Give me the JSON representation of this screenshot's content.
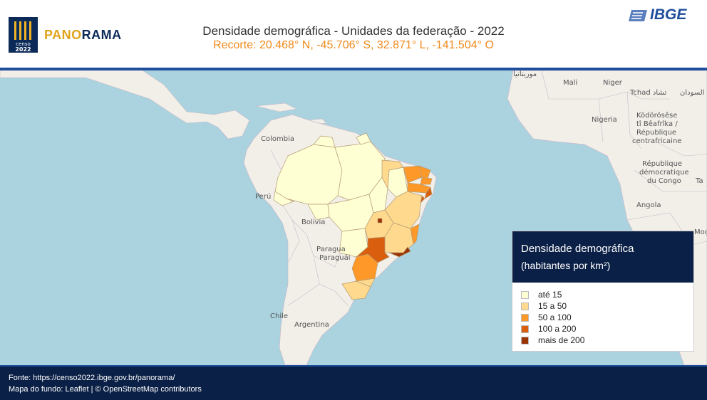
{
  "header": {
    "brand_censo_line1": "censo",
    "brand_censo_line2": "2022",
    "brand_panorama_a": "PANO",
    "brand_panorama_b": "RAMA",
    "title": "Densidade demográfica - Unidades da federação - 2022",
    "subtitle": "Recorte: 20.468° N, -45.706° S, 32.871° L, -141.504° O",
    "ibge_logo": "IBGE"
  },
  "map": {
    "labels": [
      {
        "text": "موريتانيا"
      },
      {
        "text": "Mali"
      },
      {
        "text": "Niger"
      },
      {
        "text": "Tchad تشاد"
      },
      {
        "text": "السودان"
      },
      {
        "text": "Nigeria"
      },
      {
        "text": "Ködörösêse"
      },
      {
        "text": "tî Bêafrîka /"
      },
      {
        "text": "République"
      },
      {
        "text": "centrafricaine"
      },
      {
        "text": "République"
      },
      {
        "text": "démocratique"
      },
      {
        "text": "du Congo"
      },
      {
        "text": "Ta"
      },
      {
        "text": "Angola"
      },
      {
        "text": "Moç"
      },
      {
        "text": "Colombia"
      },
      {
        "text": "Perú"
      },
      {
        "text": "Bolivia"
      },
      {
        "text": "Paragua"
      },
      {
        "text": "Paraguái"
      },
      {
        "text": "Chile"
      },
      {
        "text": "Argentina"
      }
    ],
    "colors": {
      "ocean": "#aad3df",
      "land": "#f2efe9",
      "class1": "#ffffd4",
      "class2": "#fed98e",
      "class3": "#fe9929",
      "class4": "#d95f0e",
      "class5": "#993404"
    }
  },
  "legend": {
    "title": "Densidade demográfica",
    "unit": "(habitantes por km²)",
    "items": [
      {
        "label": "até 15",
        "color": "#ffffd4"
      },
      {
        "label": "15 a 50",
        "color": "#fed98e"
      },
      {
        "label": "50 a 100",
        "color": "#fe9929"
      },
      {
        "label": "100 a 200",
        "color": "#d95f0e"
      },
      {
        "label": "mais de 200",
        "color": "#993404"
      }
    ]
  },
  "footer": {
    "source": "Fonte: https://censo2022.ibge.gov.br/panorama/",
    "basemap": "Mapa do fundo: Leaflet | © OpenStreetMap contributors"
  }
}
